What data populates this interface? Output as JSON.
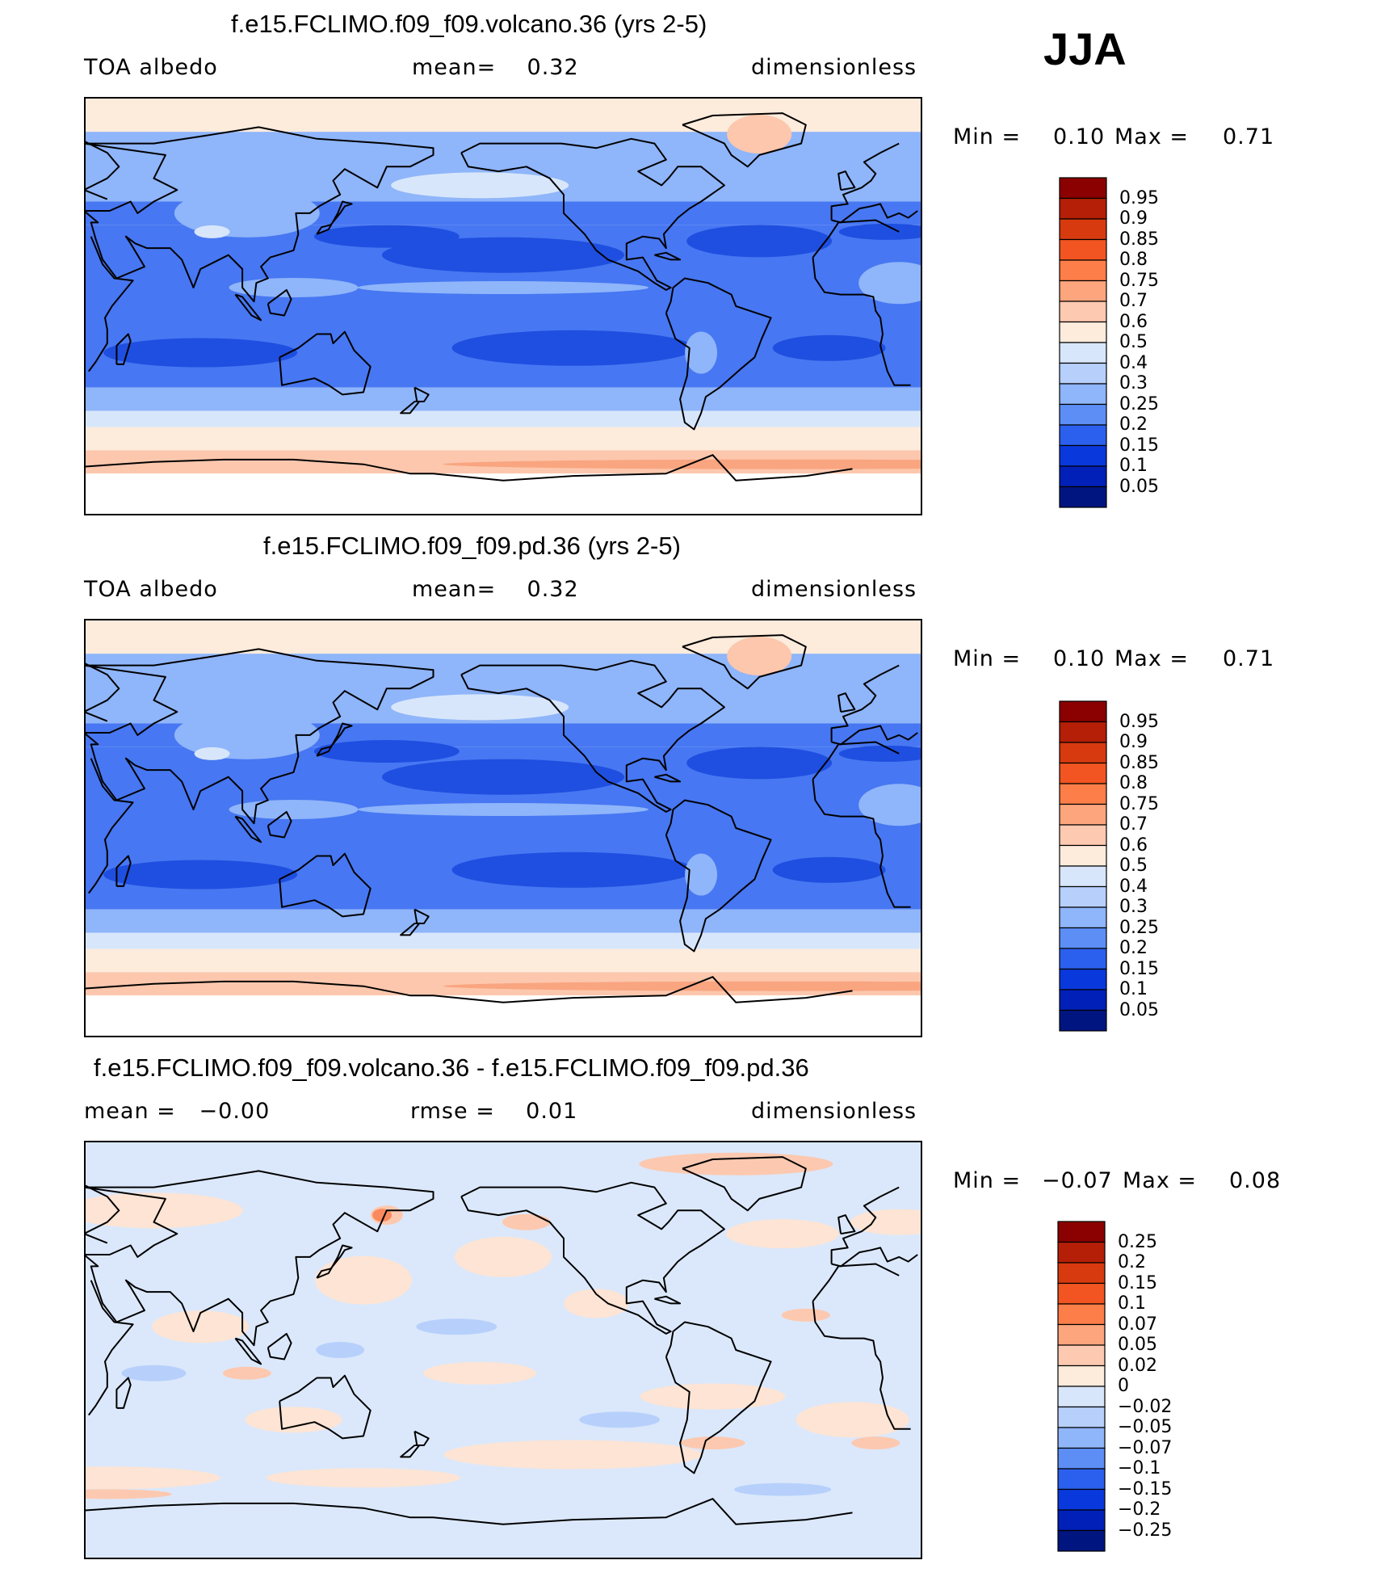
{
  "season": "JJA",
  "panels": [
    {
      "title": "f.e15.FCLIMO.f09_f09.volcano.36 (yrs 2-5)",
      "sub_left": "TOA albedo",
      "sub_mid": "mean=    0.32",
      "sub_right": "dimensionless",
      "min_label": "Min =",
      "min_value": "0.10",
      "max_label": "Max =",
      "max_value": "0.71",
      "colorbar": {
        "labels": [
          "0.95",
          "0.9",
          "0.85",
          "0.8",
          "0.75",
          "0.7",
          "0.6",
          "0.5",
          "0.4",
          "0.3",
          "0.25",
          "0.2",
          "0.15",
          "0.1",
          "0.05"
        ],
        "colors": [
          "#8b0000",
          "#b51f07",
          "#d83a0f",
          "#f25521",
          "#fd7e48",
          "#fda57d",
          "#fec9b1",
          "#fdebdc",
          "#d7e6fa",
          "#b7d0fb",
          "#8fb5fa",
          "#5c8ef6",
          "#2b60ee",
          "#0939dc",
          "#0020b8",
          "#00157f"
        ]
      },
      "map_palette": {
        "ocean_low": "#1f4fe0",
        "ocean_mid": "#4777f2",
        "ocean_light": "#8fb5fa",
        "pale": "#d7e6fa",
        "peach": "#fdebdc",
        "salmon": "#fcc7ad",
        "coral": "#f9a580"
      }
    },
    {
      "title": "f.e15.FCLIMO.f09_f09.pd.36 (yrs 2-5)",
      "sub_left": "TOA albedo",
      "sub_mid": "mean=    0.32",
      "sub_right": "dimensionless",
      "min_label": "Min =",
      "min_value": "0.10",
      "max_label": "Max =",
      "max_value": "0.71",
      "colorbar": {
        "labels": [
          "0.95",
          "0.9",
          "0.85",
          "0.8",
          "0.75",
          "0.7",
          "0.6",
          "0.5",
          "0.4",
          "0.3",
          "0.25",
          "0.2",
          "0.15",
          "0.1",
          "0.05"
        ],
        "colors": [
          "#8b0000",
          "#b51f07",
          "#d83a0f",
          "#f25521",
          "#fd7e48",
          "#fda57d",
          "#fec9b1",
          "#fdebdc",
          "#d7e6fa",
          "#b7d0fb",
          "#8fb5fa",
          "#5c8ef6",
          "#2b60ee",
          "#0939dc",
          "#0020b8",
          "#00157f"
        ]
      },
      "map_palette": {
        "ocean_low": "#1f4fe0",
        "ocean_mid": "#4777f2",
        "ocean_light": "#8fb5fa",
        "pale": "#d7e6fa",
        "peach": "#fdebdc",
        "salmon": "#fcc7ad",
        "coral": "#f9a580"
      }
    },
    {
      "title": "f.e15.FCLIMO.f09_f09.volcano.36 - f.e15.FCLIMO.f09_f09.pd.36",
      "sub_left": "mean =   −0.00",
      "sub_mid": "rmse =    0.01",
      "sub_right": "dimensionless",
      "min_label": "Min =",
      "min_value": "−0.07",
      "max_label": "Max =",
      "max_value": "0.08",
      "colorbar": {
        "labels": [
          "0.25",
          "0.2",
          "0.15",
          "0.1",
          "0.07",
          "0.05",
          "0.02",
          "0",
          "−0.02",
          "−0.05",
          "−0.07",
          "−0.1",
          "−0.15",
          "−0.2",
          "−0.25"
        ],
        "colors": [
          "#8b0000",
          "#b51f07",
          "#d83a0f",
          "#f25521",
          "#fd7e48",
          "#fda57d",
          "#fec9b1",
          "#fdebdc",
          "#d7e6fa",
          "#b7d0fb",
          "#8fb5fa",
          "#5c8ef6",
          "#2b60ee",
          "#0939dc",
          "#0020b8",
          "#00157f"
        ]
      },
      "map_palette": {
        "base_pos": "#fde4d4",
        "base_neg": "#dbe8fb",
        "pos": "#fcc9b0",
        "neg": "#b7d0fb",
        "strong_pos": "#f98a5e",
        "strong_neg": "#8fb5fa"
      }
    }
  ]
}
